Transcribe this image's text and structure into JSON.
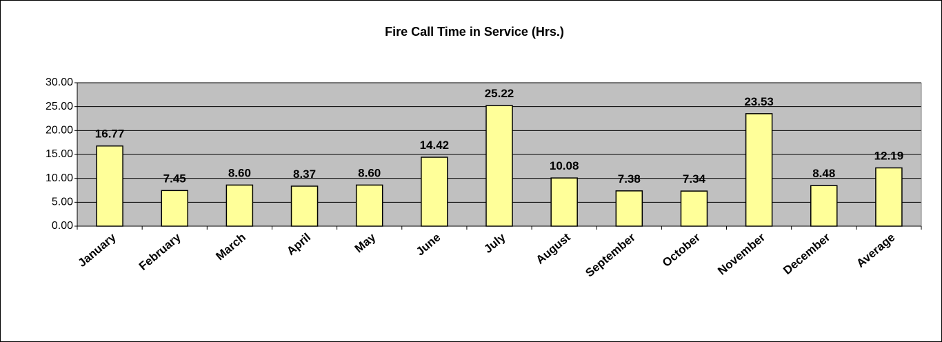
{
  "chart_data": {
    "type": "bar",
    "title": "Fire Call Time in Service (Hrs.)",
    "categories": [
      "January",
      "February",
      "March",
      "April",
      "May",
      "June",
      "July",
      "August",
      "September",
      "October",
      "November",
      "December",
      "Average"
    ],
    "values": [
      16.77,
      7.45,
      8.6,
      8.37,
      8.6,
      14.42,
      25.22,
      10.08,
      7.38,
      7.34,
      23.53,
      8.48,
      12.19
    ],
    "value_labels": [
      "16.77",
      "7.45",
      "8.60",
      "8.37",
      "8.60",
      "14.42",
      "25.22",
      "10.08",
      "7.38",
      "7.34",
      "23.53",
      "8.48",
      "12.19"
    ],
    "color": "#ffff99",
    "ylim": [
      0,
      30
    ],
    "yticks": [
      {
        "value": 0,
        "label": "0.00"
      },
      {
        "value": 5,
        "label": "5.00"
      },
      {
        "value": 10,
        "label": "10.00"
      },
      {
        "value": 15,
        "label": "15.00"
      },
      {
        "value": 20,
        "label": "20.00"
      },
      {
        "value": 25,
        "label": "25.00"
      },
      {
        "value": 30,
        "label": "30.00"
      }
    ],
    "grid": true
  }
}
